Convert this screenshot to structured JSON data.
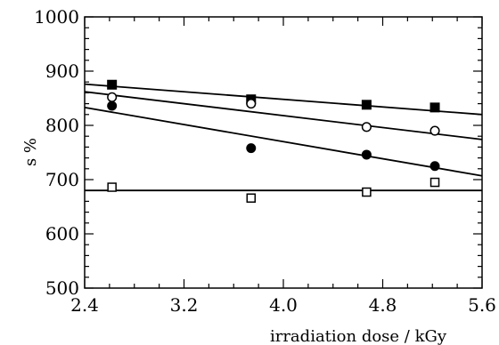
{
  "chart_data": {
    "type": "scatter",
    "title": "",
    "xlabel": "irradiation dose / kGy",
    "ylabel": "s %",
    "xlim": [
      2.4,
      5.6
    ],
    "ylim": [
      500,
      1000
    ],
    "xticks": [
      2.4,
      3.2,
      4.0,
      4.8,
      5.6
    ],
    "xtick_labels": [
      "2.4",
      "3.2",
      "4.0",
      "4.8",
      "5.6"
    ],
    "yticks": [
      500,
      600,
      700,
      800,
      900,
      1000
    ],
    "ytick_labels": [
      "500",
      "600",
      "700",
      "800",
      "900",
      "1000"
    ],
    "x_minor_step": 0.2,
    "y_minor_step": 20,
    "grid": false,
    "series": [
      {
        "marker": "filled-square",
        "x": [
          2.62,
          3.74,
          4.67,
          5.22
        ],
        "y": [
          875,
          848,
          838,
          833
        ],
        "fit": [
          [
            2.4,
            876
          ],
          [
            5.6,
            820
          ]
        ]
      },
      {
        "marker": "open-circle",
        "x": [
          2.62,
          3.74,
          4.67,
          5.22
        ],
        "y": [
          852,
          840,
          797,
          790
        ],
        "fit": [
          [
            2.4,
            862
          ],
          [
            5.6,
            774
          ]
        ]
      },
      {
        "marker": "filled-circle",
        "x": [
          2.62,
          3.74,
          4.67,
          5.22
        ],
        "y": [
          836,
          758,
          746,
          725
        ],
        "fit": [
          [
            2.4,
            833
          ],
          [
            5.6,
            707
          ]
        ]
      },
      {
        "marker": "open-square",
        "x": [
          2.62,
          3.74,
          4.67,
          5.22
        ],
        "y": [
          686,
          666,
          677,
          695
        ],
        "fit": [
          [
            2.4,
            680
          ],
          [
            5.6,
            680
          ]
        ]
      }
    ]
  }
}
